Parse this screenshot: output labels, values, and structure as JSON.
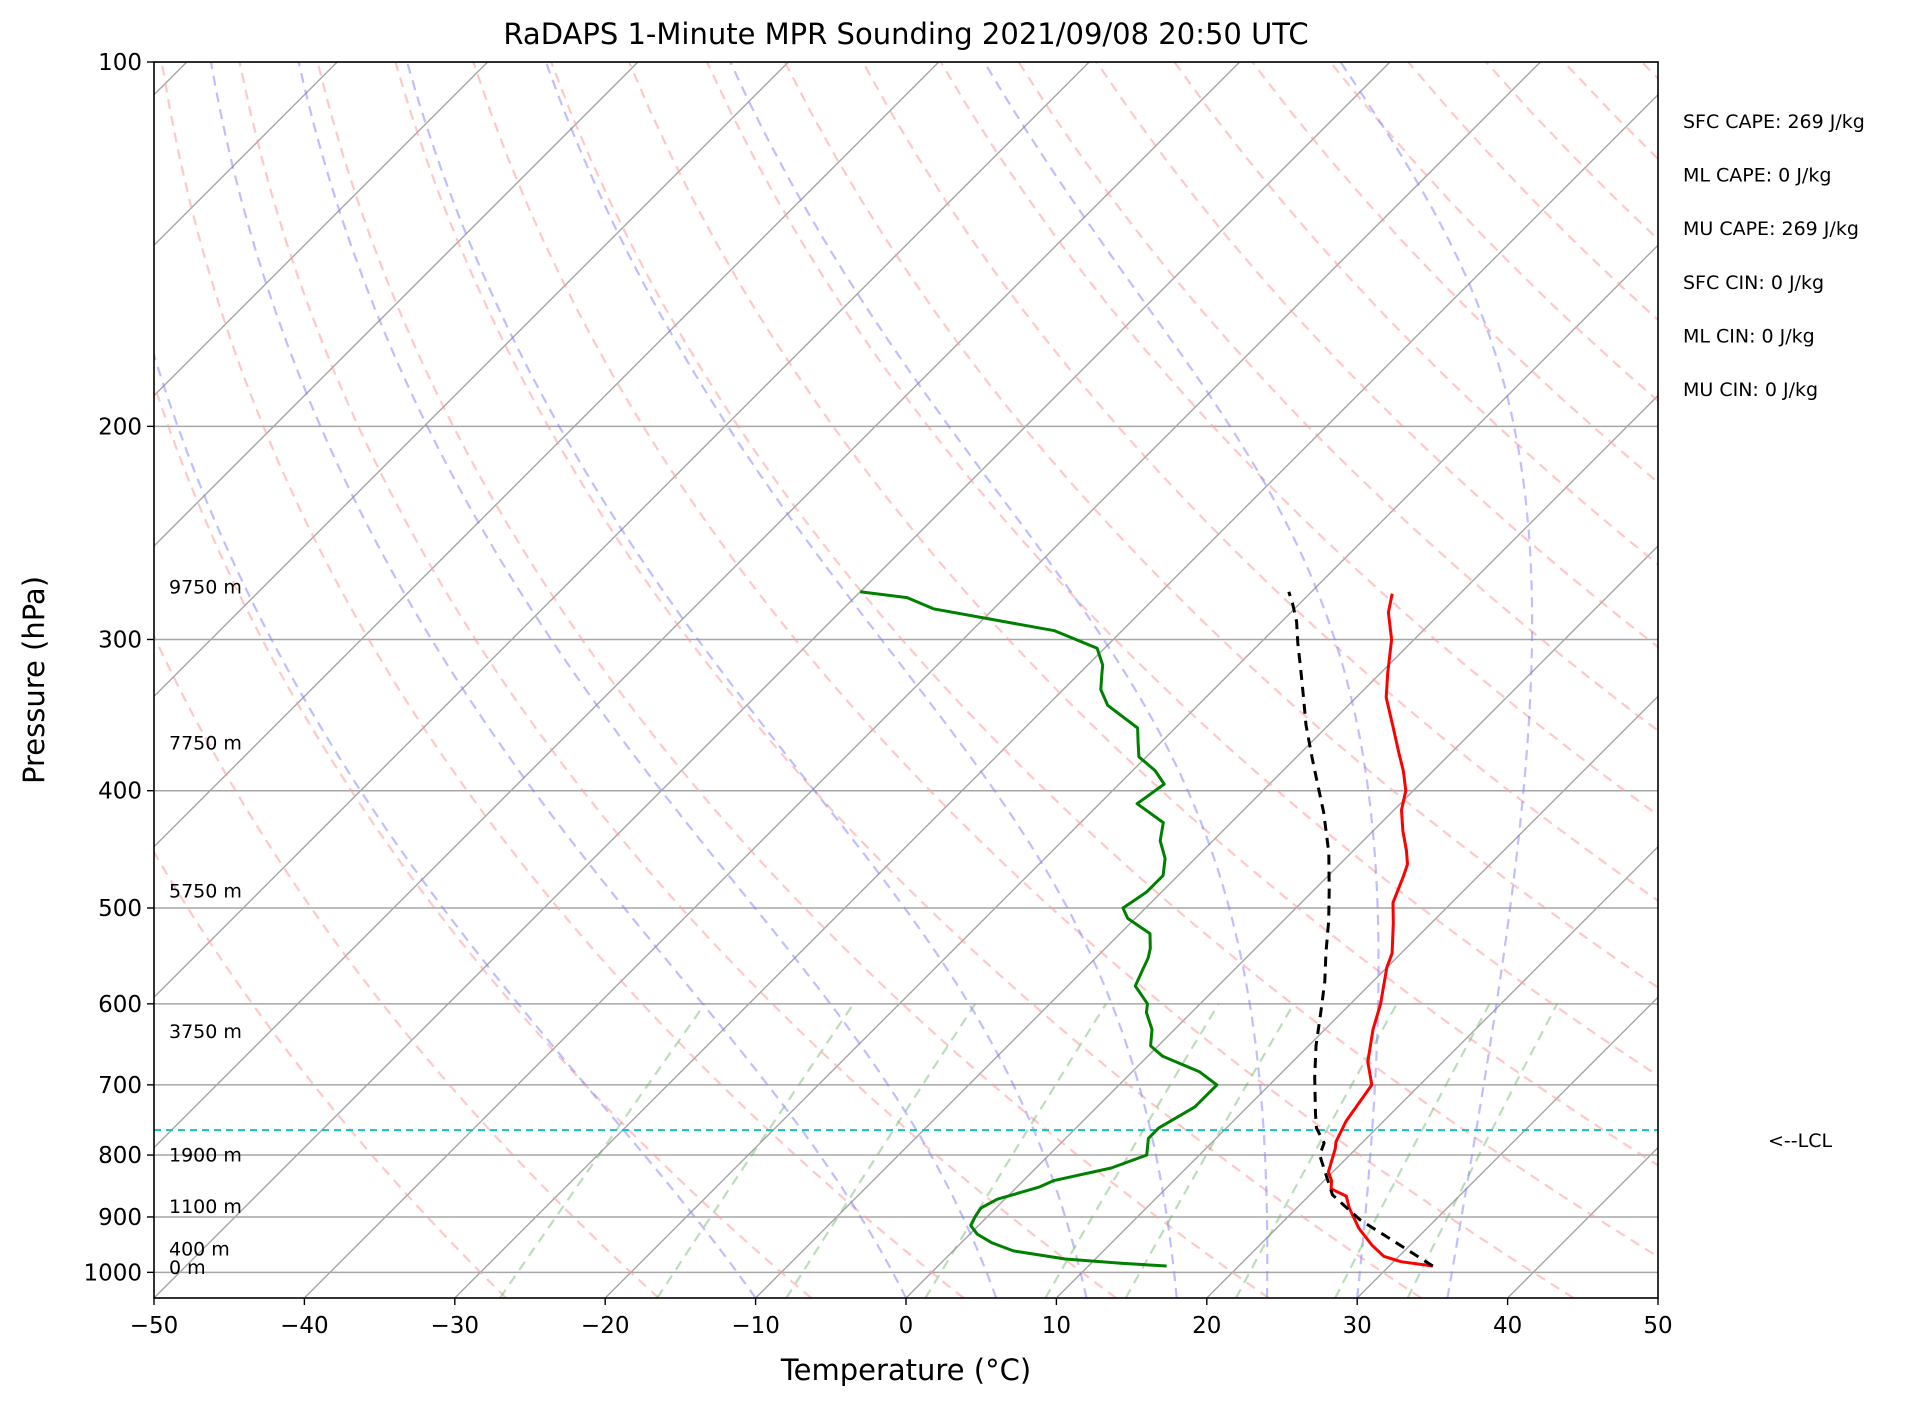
{
  "chart_data": {
    "type": "line",
    "subtype": "skew-T log-P",
    "title": "RaDAPS 1-Minute MPR Sounding 2021/09/08 20:50 UTC",
    "xlabel": "Temperature (°C)",
    "ylabel": "Pressure (hPa)",
    "xlim": [
      -50,
      50
    ],
    "ylim": [
      1050,
      100
    ],
    "y_scale": "log",
    "x_ticks": [
      "−50",
      "−40",
      "−30",
      "−20",
      "−10",
      "0",
      "10",
      "20",
      "30",
      "40",
      "50"
    ],
    "y_ticks": [
      "100",
      "200",
      "300",
      "400",
      "500",
      "600",
      "700",
      "800",
      "900",
      "1000"
    ],
    "grid": true,
    "height_labels": [
      {
        "text": "9750 m",
        "p": 275
      },
      {
        "text": "7750 m",
        "p": 370
      },
      {
        "text": "5750 m",
        "p": 490
      },
      {
        "text": "3750 m",
        "p": 640
      },
      {
        "text": "1900 m",
        "p": 810
      },
      {
        "text": "1100 m",
        "p": 893
      },
      {
        "text": "400 m",
        "p": 968
      },
      {
        "text": "0 m",
        "p": 1003
      }
    ],
    "lcl": {
      "p": 763,
      "label": "<--LCL"
    },
    "stats": [
      "SFC CAPE: 269 J/kg",
      "ML CAPE: 0 J/kg",
      "MU CAPE: 269 J/kg",
      "SFC CIN: 0 J/kg",
      "ML CIN: 0 J/kg",
      "MU CIN: 0 J/kg"
    ],
    "series": [
      {
        "role": "temperature",
        "color": "#ff0000",
        "points": [
          [
            32.9,
            988
          ],
          [
            30.5,
            980
          ],
          [
            29.0,
            970
          ],
          [
            27.5,
            950
          ],
          [
            25.5,
            920
          ],
          [
            23.5,
            885
          ],
          [
            22.5,
            865
          ],
          [
            21.0,
            853
          ],
          [
            20.5,
            840
          ],
          [
            19.7,
            826
          ],
          [
            18.6,
            790
          ],
          [
            18.2,
            780
          ],
          [
            17.5,
            750
          ],
          [
            16.8,
            700
          ],
          [
            15.0,
            670
          ],
          [
            13.2,
            630
          ],
          [
            12.0,
            600
          ],
          [
            10.0,
            560
          ],
          [
            9.4,
            545
          ],
          [
            7.5,
            515
          ],
          [
            6.1,
            495
          ],
          [
            5.0,
            470
          ],
          [
            4.5,
            460
          ],
          [
            3.5,
            448
          ],
          [
            2.0,
            432
          ],
          [
            0.5,
            415
          ],
          [
            -0.5,
            400
          ],
          [
            -2.0,
            385
          ],
          [
            -3.5,
            372
          ],
          [
            -5.5,
            355
          ],
          [
            -8.0,
            335
          ],
          [
            -9.5,
            320
          ],
          [
            -11.5,
            300
          ],
          [
            -13.5,
            285
          ],
          [
            -14.5,
            275
          ]
        ]
      },
      {
        "role": "dewpoint",
        "color": "#008000",
        "points": [
          [
            15.2,
            988
          ],
          [
            12.0,
            983
          ],
          [
            8.0,
            975
          ],
          [
            4.0,
            960
          ],
          [
            2.0,
            945
          ],
          [
            0.5,
            930
          ],
          [
            -0.5,
            915
          ],
          [
            -0.8,
            900
          ],
          [
            -1.0,
            885
          ],
          [
            -0.5,
            870
          ],
          [
            0.5,
            860
          ],
          [
            1.5,
            850
          ],
          [
            2.0,
            840
          ],
          [
            5.0,
            820
          ],
          [
            6.5,
            800
          ],
          [
            5.5,
            775
          ],
          [
            5.5,
            760
          ],
          [
            6.0,
            745
          ],
          [
            6.5,
            730
          ],
          [
            6.5,
            700
          ],
          [
            4.5,
            683
          ],
          [
            1.0,
            663
          ],
          [
            -0.5,
            650
          ],
          [
            -1.5,
            630
          ],
          [
            -3.0,
            610
          ],
          [
            -3.5,
            600
          ],
          [
            -5.5,
            580
          ],
          [
            -6.0,
            565
          ],
          [
            -6.5,
            550
          ],
          [
            -7.0,
            540
          ],
          [
            -8.0,
            525
          ],
          [
            -10.5,
            510
          ],
          [
            -11.5,
            500
          ],
          [
            -11.0,
            485
          ],
          [
            -11.0,
            470
          ],
          [
            -12.0,
            455
          ],
          [
            -13.5,
            440
          ],
          [
            -14.5,
            425
          ],
          [
            -17.5,
            410
          ],
          [
            -17.0,
            395
          ],
          [
            -18.5,
            385
          ],
          [
            -20.5,
            375
          ],
          [
            -21.5,
            365
          ],
          [
            -22.5,
            355
          ],
          [
            -26.0,
            340
          ],
          [
            -27.5,
            330
          ],
          [
            -28.5,
            320
          ],
          [
            -29.0,
            315
          ],
          [
            -30.5,
            305
          ],
          [
            -34.5,
            295
          ],
          [
            -44.0,
            283
          ],
          [
            -46.5,
            277
          ],
          [
            -50.0,
            274
          ]
        ]
      },
      {
        "role": "parcel",
        "color": "#000000",
        "dashed": true,
        "points": [
          [
            32.9,
            988
          ],
          [
            29.0,
            946
          ],
          [
            25.0,
            905
          ],
          [
            21.5,
            863
          ],
          [
            18.0,
            800
          ],
          [
            17.5,
            782
          ],
          [
            16.0,
            760
          ],
          [
            15.0,
            740
          ],
          [
            12.5,
            690
          ],
          [
            10.5,
            650
          ],
          [
            8.5,
            608
          ],
          [
            6.8,
            575
          ],
          [
            5.0,
            545
          ],
          [
            3.0,
            512
          ],
          [
            1.0,
            483
          ],
          [
            -1.5,
            450
          ],
          [
            -4.5,
            417
          ],
          [
            -6.8,
            395
          ],
          [
            -9.0,
            375
          ],
          [
            -11.5,
            353
          ],
          [
            -13.5,
            335
          ],
          [
            -15.5,
            318
          ],
          [
            -17.5,
            302
          ],
          [
            -19.0,
            290
          ],
          [
            -20.5,
            280
          ],
          [
            -21.5,
            274
          ]
        ]
      }
    ]
  }
}
